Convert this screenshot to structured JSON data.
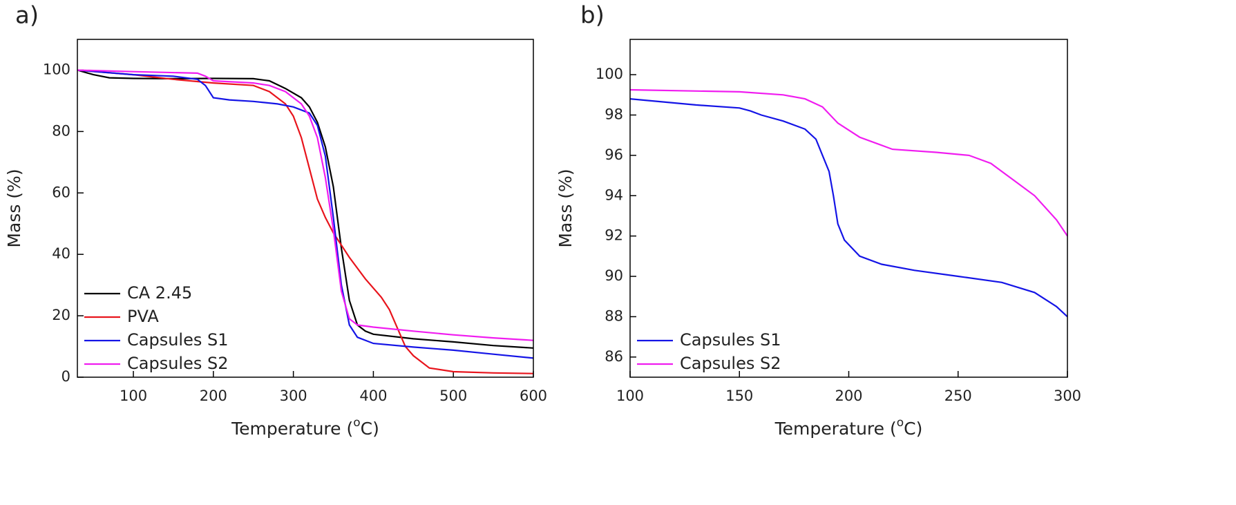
{
  "chart_data": [
    {
      "type": "line",
      "panel_label": "a)",
      "x_label": [
        "Temperature (",
        "o",
        "C)"
      ],
      "y_label": "Mass (%)",
      "xlim": [
        30,
        600
      ],
      "ylim": [
        0,
        110
      ],
      "xticks": [
        100,
        200,
        300,
        400,
        500,
        600
      ],
      "yticks": [
        0,
        20,
        40,
        60,
        80,
        100
      ],
      "legend": "lower-left",
      "series": [
        {
          "name": "CA 2.45",
          "color": "#000000",
          "x": [
            30,
            50,
            70,
            100,
            150,
            200,
            250,
            270,
            290,
            310,
            320,
            330,
            340,
            350,
            360,
            370,
            380,
            390,
            400,
            450,
            500,
            550,
            600
          ],
          "values": [
            100,
            98.5,
            97.5,
            97.3,
            97.2,
            97.3,
            97.2,
            96.5,
            94,
            91,
            88,
            83,
            75,
            62,
            42,
            25,
            17,
            15,
            14,
            12.5,
            11.5,
            10.3,
            9.5
          ]
        },
        {
          "name": "PVA",
          "color": "#e8141c",
          "x": [
            30,
            100,
            150,
            200,
            250,
            270,
            290,
            300,
            310,
            320,
            330,
            340,
            350,
            360,
            370,
            390,
            410,
            420,
            430,
            440,
            450,
            470,
            500,
            550,
            600
          ],
          "values": [
            100,
            98.5,
            97,
            95.8,
            95,
            93,
            89,
            85,
            78,
            68,
            58,
            52,
            47,
            43,
            39,
            32,
            26,
            22,
            16,
            10,
            7,
            3,
            1.8,
            1.4,
            1.2
          ]
        },
        {
          "name": "Capsules S1",
          "color": "#1414e6",
          "x": [
            30,
            100,
            150,
            180,
            190,
            200,
            220,
            250,
            280,
            300,
            320,
            330,
            340,
            350,
            360,
            370,
            380,
            400,
            450,
            500,
            550,
            600
          ],
          "values": [
            100,
            98.5,
            98,
            97,
            95,
            91,
            90.3,
            89.8,
            89,
            88,
            86,
            82,
            72,
            52,
            30,
            17,
            13,
            11,
            9.8,
            8.8,
            7.5,
            6.2
          ]
        },
        {
          "name": "Capsules S2",
          "color": "#f01cf0",
          "x": [
            30,
            100,
            180,
            190,
            200,
            250,
            270,
            290,
            310,
            320,
            330,
            340,
            350,
            360,
            370,
            380,
            400,
            450,
            500,
            550,
            600
          ],
          "values": [
            100,
            99.5,
            99,
            98,
            96.5,
            95.8,
            95,
            93,
            89,
            85,
            78,
            65,
            48,
            28,
            19,
            17,
            16.3,
            15,
            13.8,
            12.8,
            12
          ]
        }
      ]
    },
    {
      "type": "line",
      "panel_label": "b)",
      "x_label": [
        "Temperature (",
        "o",
        "C)"
      ],
      "y_label": "Mass (%)",
      "xlim": [
        100,
        300
      ],
      "ylim": [
        85,
        101.75
      ],
      "xticks": [
        100,
        150,
        200,
        250,
        300
      ],
      "yticks": [
        86,
        88,
        90,
        92,
        94,
        96,
        98,
        100
      ],
      "legend": "lower-left",
      "series": [
        {
          "name": "Capsules S1",
          "color": "#1414e6",
          "x": [
            100,
            130,
            150,
            155,
            160,
            170,
            180,
            185,
            188,
            191,
            193,
            195,
            198,
            205,
            215,
            230,
            250,
            270,
            285,
            295,
            300
          ],
          "values": [
            98.8,
            98.5,
            98.35,
            98.2,
            98,
            97.7,
            97.3,
            96.8,
            96,
            95.2,
            94,
            92.6,
            91.8,
            91,
            90.6,
            90.3,
            90,
            89.7,
            89.2,
            88.5,
            88
          ]
        },
        {
          "name": "Capsules S2",
          "color": "#f01cf0",
          "x": [
            100,
            150,
            170,
            180,
            188,
            195,
            205,
            220,
            240,
            255,
            265,
            275,
            285,
            295,
            300
          ],
          "values": [
            99.25,
            99.15,
            99,
            98.8,
            98.4,
            97.6,
            96.9,
            96.3,
            96.15,
            96,
            95.6,
            94.8,
            94,
            92.8,
            92
          ]
        }
      ]
    }
  ]
}
